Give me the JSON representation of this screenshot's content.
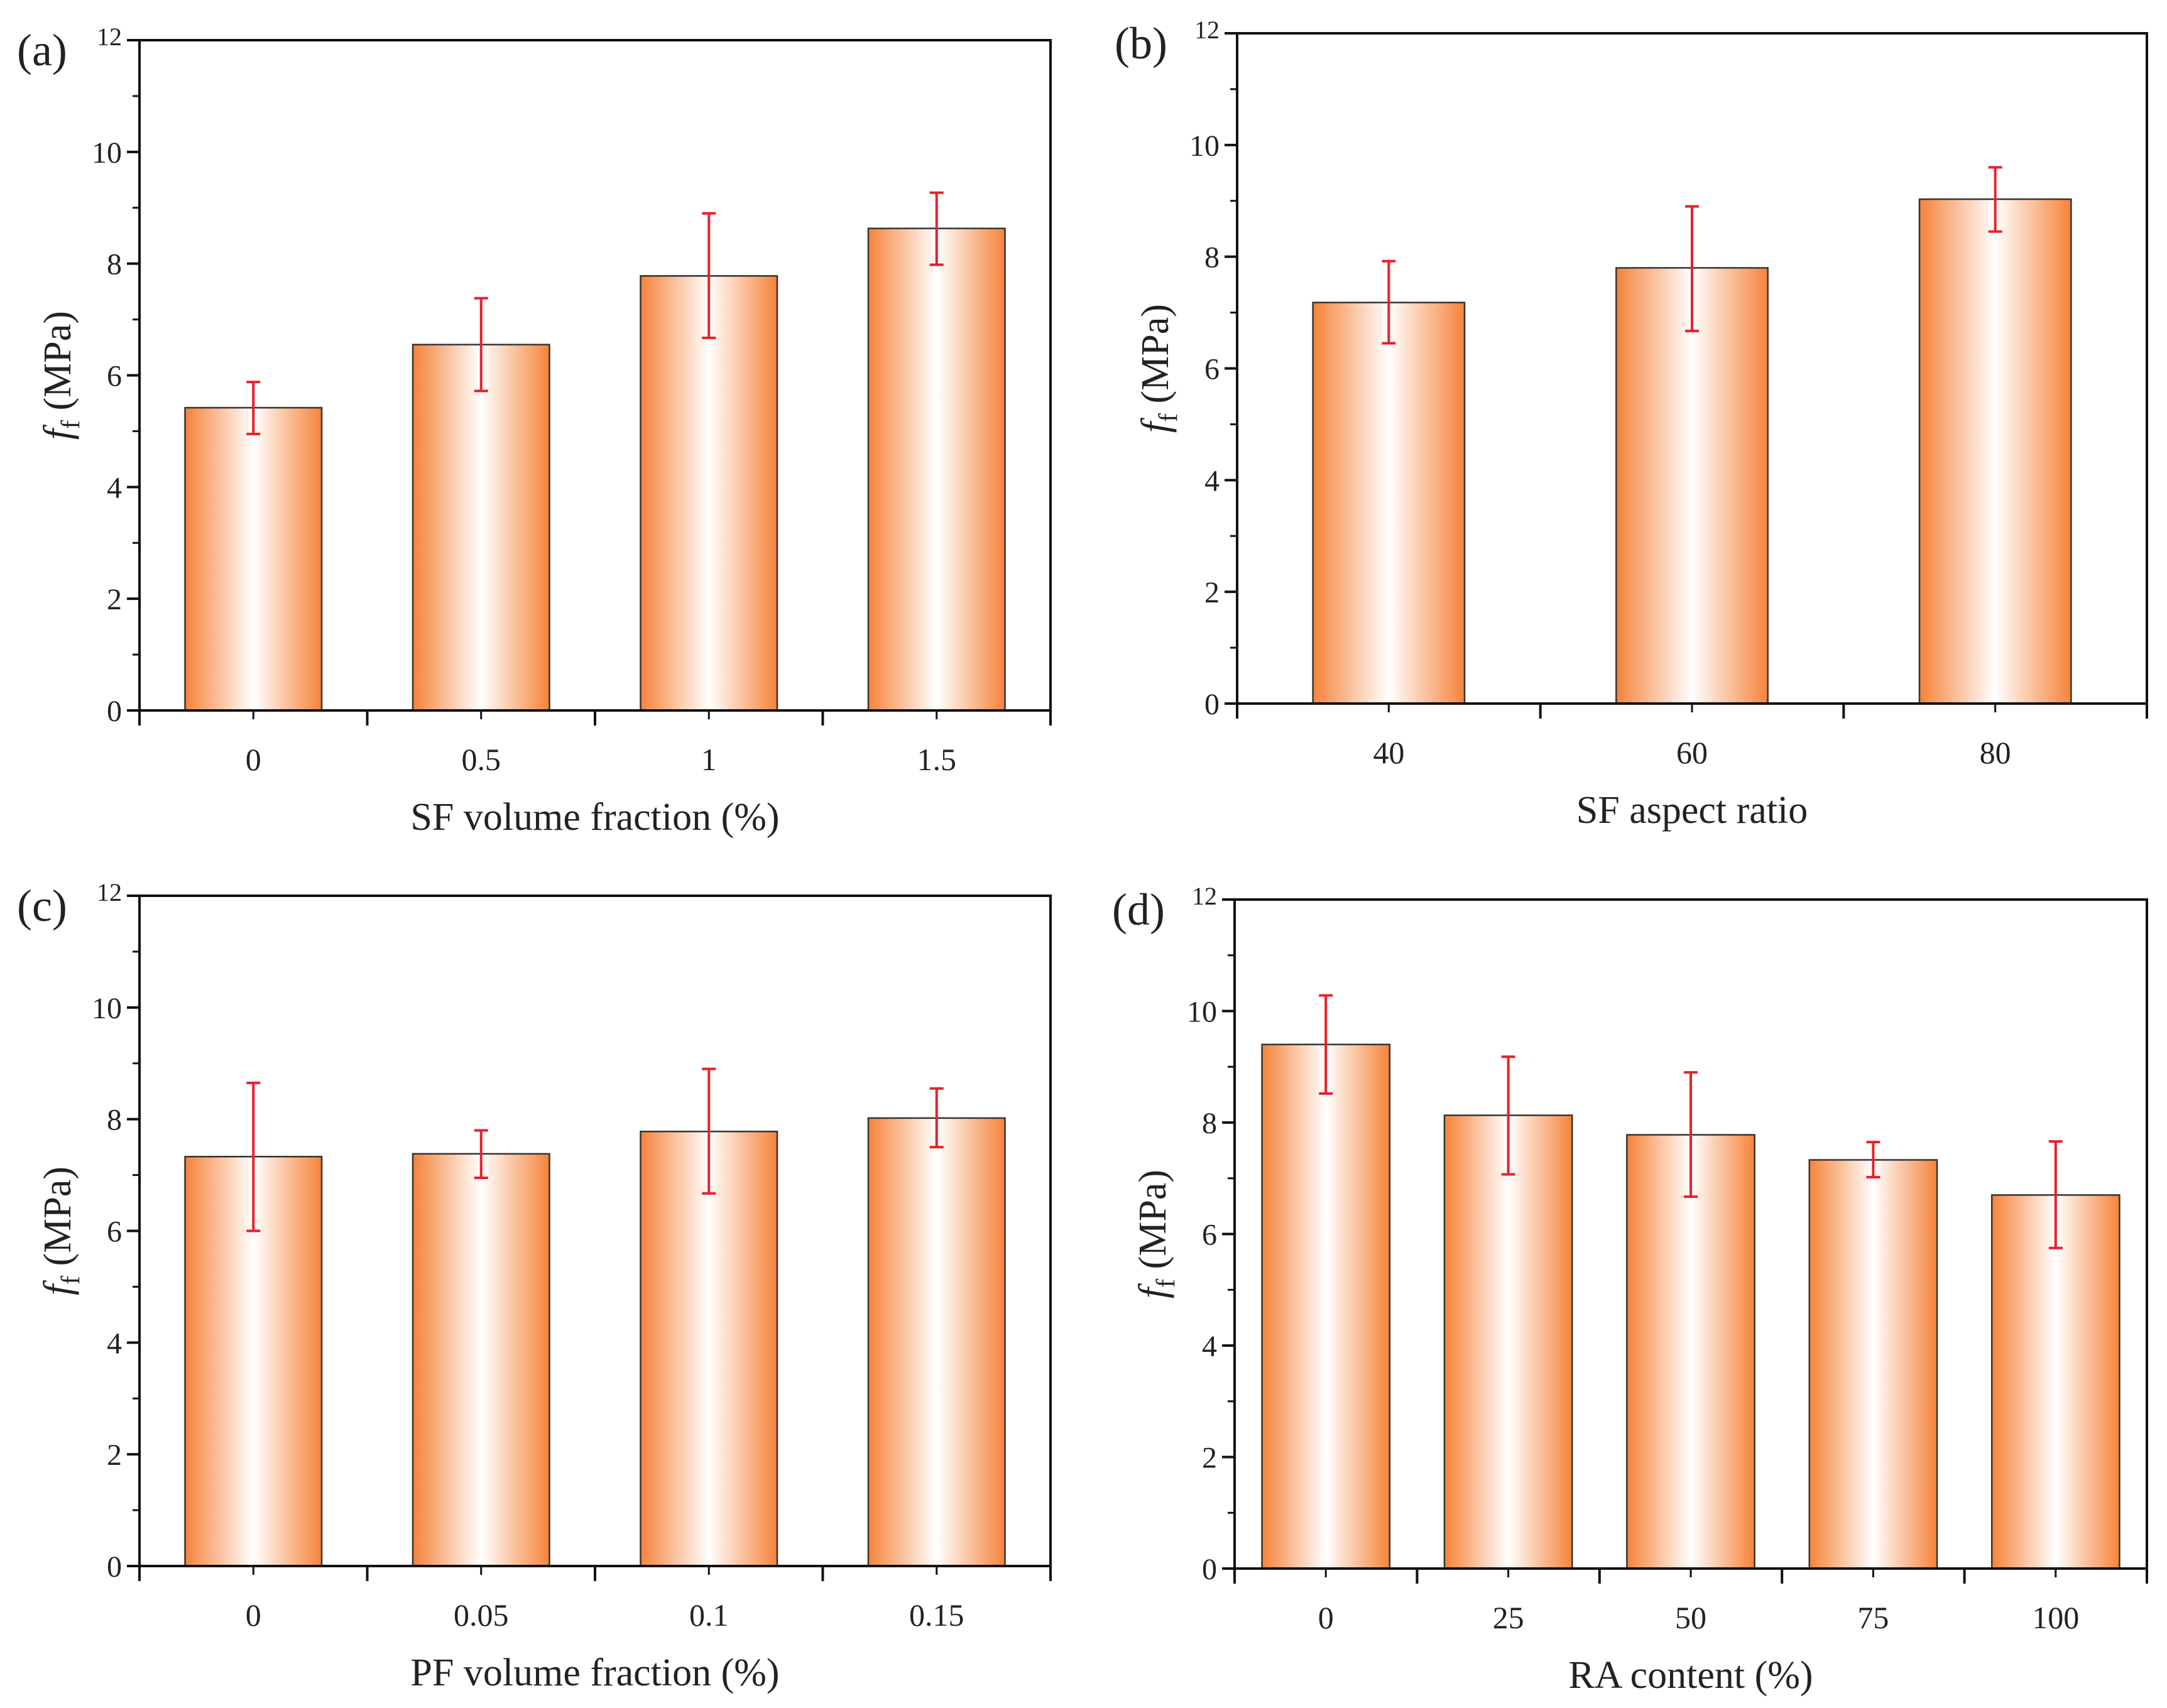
{
  "colors": {
    "bar_edge": "#f5833a",
    "bar_center": "#ffffff",
    "error_bar": "#e8202a",
    "axis": "#111111"
  },
  "chart_data": [
    {
      "panel_label": "(a)",
      "type": "bar",
      "xlabel": "SF volume fraction (%)",
      "ylabel_main": "f",
      "ylabel_sub": "f",
      "ylabel_unit": " (MPa)",
      "categories": [
        "0",
        "0.5",
        "1",
        "1.5"
      ],
      "values": [
        5.42,
        6.55,
        7.78,
        8.63
      ],
      "error_low": [
        4.95,
        5.72,
        6.67,
        7.98
      ],
      "error_high": [
        5.88,
        7.38,
        8.9,
        9.27
      ],
      "ylim": [
        0,
        12
      ],
      "yticks": [
        "0",
        "2",
        "4",
        "6",
        "8",
        "10",
        "12"
      ]
    },
    {
      "panel_label": "(b)",
      "type": "bar",
      "xlabel": "SF aspect ratio",
      "ylabel_main": "f",
      "ylabel_sub": "f",
      "ylabel_unit": " (MPa)",
      "categories": [
        "40",
        "60",
        "80"
      ],
      "values": [
        7.18,
        7.8,
        9.03
      ],
      "error_low": [
        6.45,
        6.67,
        8.45
      ],
      "error_high": [
        7.92,
        8.9,
        9.6
      ],
      "ylim": [
        0,
        12
      ],
      "yticks": [
        "0",
        "2",
        "4",
        "6",
        "8",
        "10",
        "12"
      ]
    },
    {
      "panel_label": "(c)",
      "type": "bar",
      "xlabel": "PF volume fraction (%)",
      "ylabel_main": "f",
      "ylabel_sub": "f",
      "ylabel_unit": " (MPa)",
      "categories": [
        "0",
        "0.05",
        "0.1",
        "0.15"
      ],
      "values": [
        7.33,
        7.38,
        7.78,
        8.02
      ],
      "error_low": [
        6.0,
        6.95,
        6.67,
        7.5
      ],
      "error_high": [
        8.65,
        7.8,
        8.9,
        8.55
      ],
      "ylim": [
        0,
        12
      ],
      "yticks": [
        "0",
        "2",
        "4",
        "6",
        "8",
        "10",
        "12"
      ]
    },
    {
      "panel_label": "(d)",
      "type": "bar",
      "xlabel": "RA content (%)",
      "ylabel_main": "f",
      "ylabel_sub": "f",
      "ylabel_unit": " (MPa)",
      "categories": [
        "0",
        "25",
        "50",
        "75",
        "100"
      ],
      "values": [
        9.4,
        8.13,
        7.78,
        7.33,
        6.7
      ],
      "error_low": [
        8.52,
        7.07,
        6.67,
        7.02,
        5.75
      ],
      "error_high": [
        10.28,
        9.18,
        8.9,
        7.65,
        7.66
      ],
      "ylim": [
        0,
        12
      ],
      "yticks": [
        "0",
        "2",
        "4",
        "6",
        "8",
        "10",
        "12"
      ]
    }
  ]
}
